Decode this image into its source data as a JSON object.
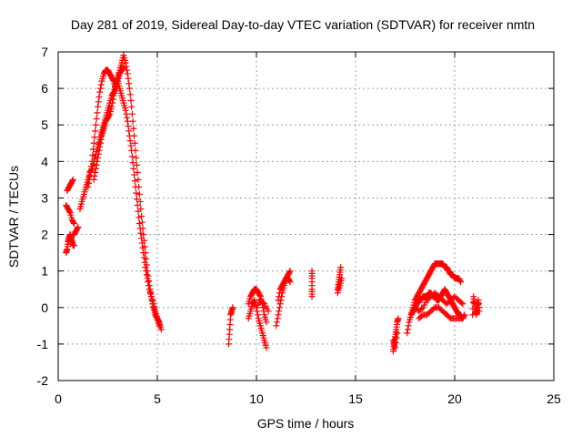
{
  "chart_data": {
    "type": "scatter",
    "title": "Day 281 of 2019, Sidereal Day-to-day VTEC variation (SDTVAR) for receiver nmtn",
    "xlabel": "GPS time / hours",
    "ylabel": "SDTVAR / TECUs",
    "xlim": [
      0,
      25
    ],
    "ylim": [
      -2,
      7
    ],
    "xticks": [
      0,
      5,
      10,
      15,
      20,
      25
    ],
    "yticks": [
      -2,
      -1,
      0,
      1,
      2,
      3,
      4,
      5,
      6,
      7
    ],
    "grid": true,
    "marker": "plus",
    "series": [
      {
        "name": "SDTVAR",
        "color": "#ff0000",
        "segments": [
          {
            "x": [
              0.4,
              0.45,
              0.5,
              0.55,
              0.6,
              0.65,
              0.7,
              0.75,
              0.8
            ],
            "y": [
              1.5,
              1.6,
              1.8,
              1.9,
              2.0,
              1.9,
              1.8,
              1.7,
              1.7
            ]
          },
          {
            "x": [
              0.4,
              0.5,
              0.6,
              0.7,
              0.8
            ],
            "y": [
              2.8,
              2.7,
              2.6,
              2.4,
              2.3
            ]
          },
          {
            "x": [
              0.45,
              0.55,
              0.65,
              0.75
            ],
            "y": [
              3.2,
              3.3,
              3.4,
              3.5
            ]
          },
          {
            "x": [
              0.8,
              0.9,
              1.0
            ],
            "y": [
              2.0,
              2.1,
              2.2
            ]
          },
          {
            "x": [
              1.1,
              1.2,
              1.3,
              1.4,
              1.5,
              1.6,
              1.7,
              1.8,
              1.9,
              2.0,
              2.1,
              2.2,
              2.3,
              2.4,
              2.5,
              2.6,
              2.7,
              2.8,
              2.9,
              3.0,
              3.1,
              3.2,
              3.3
            ],
            "y": [
              2.7,
              2.9,
              3.1,
              3.3,
              3.5,
              3.7,
              3.8,
              4.0,
              4.2,
              4.4,
              4.6,
              4.8,
              5.0,
              5.2,
              5.4,
              5.6,
              5.8,
              5.9,
              6.1,
              6.3,
              6.5,
              6.7,
              6.9
            ]
          },
          {
            "x": [
              1.5,
              1.6,
              1.7,
              1.8,
              1.9,
              2.0,
              2.1,
              2.2,
              2.3,
              2.4,
              2.5,
              2.6,
              2.7,
              2.8,
              2.9,
              3.0
            ],
            "y": [
              3.3,
              3.6,
              4.0,
              4.5,
              5.0,
              5.5,
              5.9,
              6.2,
              6.4,
              6.5,
              6.5,
              6.4,
              6.3,
              6.2,
              6.0,
              6.3
            ]
          },
          {
            "x": [
              1.8,
              1.9,
              2.0,
              2.1,
              2.2,
              2.3,
              2.4,
              2.5,
              2.6,
              2.7,
              2.8,
              2.9,
              3.0,
              3.1,
              3.2,
              3.3
            ],
            "y": [
              3.5,
              3.8,
              4.1,
              4.4,
              4.7,
              4.9,
              5.1,
              5.2,
              5.3,
              5.5,
              5.8,
              6.0,
              6.2,
              6.4,
              6.5,
              6.6
            ]
          },
          {
            "x": [
              3.3,
              3.4,
              3.5,
              3.6,
              3.7,
              3.8,
              3.9,
              4.0,
              4.1,
              4.2,
              4.3,
              4.4,
              4.5,
              4.6,
              4.7,
              4.8,
              4.9,
              5.0,
              5.1,
              5.2
            ],
            "y": [
              6.9,
              6.7,
              6.4,
              6.0,
              5.5,
              4.9,
              4.3,
              3.7,
              3.1,
              2.5,
              2.0,
              1.5,
              1.0,
              0.6,
              0.3,
              0.0,
              -0.2,
              -0.3,
              -0.4,
              -0.6
            ]
          },
          {
            "x": [
              3.0,
              3.1,
              3.2,
              3.3,
              3.4,
              3.5,
              3.6,
              3.7,
              3.8,
              3.9,
              4.0,
              4.1,
              4.2,
              4.3,
              4.4,
              4.5,
              4.6,
              4.7,
              4.8,
              4.9,
              5.0,
              5.1
            ],
            "y": [
              6.2,
              6.0,
              5.8,
              5.6,
              5.4,
              5.1,
              4.7,
              4.3,
              3.8,
              3.3,
              2.8,
              2.3,
              1.9,
              1.5,
              1.1,
              0.8,
              0.5,
              0.3,
              0.1,
              -0.1,
              -0.3,
              -0.5
            ]
          },
          {
            "x": [
              8.6,
              8.65,
              8.7,
              8.75,
              8.8
            ],
            "y": [
              -1.0,
              -0.6,
              -0.2,
              -0.1,
              0.0
            ]
          },
          {
            "x": [
              9.6,
              9.7,
              9.8,
              9.9,
              10.0,
              10.1,
              10.2,
              10.3,
              10.4,
              10.5
            ],
            "y": [
              -0.3,
              -0.1,
              0.1,
              0.2,
              0.0,
              -0.3,
              -0.5,
              -0.7,
              -0.9,
              -1.1
            ]
          },
          {
            "x": [
              9.6,
              9.7,
              9.8,
              9.9,
              10.0,
              10.1,
              10.2,
              10.3,
              10.4,
              10.5
            ],
            "y": [
              0.1,
              0.3,
              0.4,
              0.5,
              0.5,
              0.4,
              0.3,
              0.1,
              -0.2,
              -0.4
            ]
          },
          {
            "x": [
              10.0,
              10.2,
              10.4,
              10.6
            ],
            "y": [
              0.0,
              0.2,
              0.1,
              -0.1
            ]
          },
          {
            "x": [
              11.0,
              11.1,
              11.2,
              11.3,
              11.4,
              11.5,
              11.6,
              11.7
            ],
            "y": [
              -0.5,
              -0.2,
              0.1,
              0.4,
              0.6,
              0.8,
              0.9,
              1.0
            ]
          },
          {
            "x": [
              11.1,
              11.2,
              11.3,
              11.4,
              11.5,
              11.6,
              11.7
            ],
            "y": [
              0.2,
              0.5,
              0.6,
              0.7,
              0.8,
              0.8,
              0.7
            ]
          },
          {
            "x": [
              12.8,
              12.8,
              12.8,
              12.8
            ],
            "y": [
              0.3,
              0.5,
              0.8,
              1.0
            ]
          },
          {
            "x": [
              14.1,
              14.15,
              14.2,
              14.25
            ],
            "y": [
              0.5,
              0.7,
              0.9,
              1.1
            ]
          },
          {
            "x": [
              14.1,
              14.2,
              14.3
            ],
            "y": [
              0.4,
              0.6,
              0.8
            ]
          },
          {
            "x": [
              16.9,
              16.95,
              17.0,
              17.05,
              17.1,
              17.15
            ],
            "y": [
              -1.2,
              -1.0,
              -0.8,
              -0.6,
              -0.4,
              -0.3
            ]
          },
          {
            "x": [
              16.9,
              17.0,
              17.1
            ],
            "y": [
              -0.9,
              -1.1,
              -0.7
            ]
          },
          {
            "x": [
              17.6,
              17.7,
              17.8,
              17.9,
              18.0,
              18.1,
              18.2,
              18.3,
              18.4,
              18.5,
              18.6,
              18.7,
              18.8,
              18.9,
              19.0,
              19.1,
              19.2,
              19.3,
              19.4,
              19.5,
              19.6,
              19.7,
              19.8,
              19.9,
              20.0,
              20.1,
              20.2,
              20.3
            ],
            "y": [
              -0.7,
              -0.4,
              -0.2,
              0.0,
              0.2,
              0.3,
              0.4,
              0.5,
              0.6,
              0.7,
              0.8,
              0.9,
              1.0,
              1.1,
              1.2,
              1.2,
              1.2,
              1.2,
              1.2,
              1.1,
              1.1,
              1.0,
              0.9,
              0.9,
              0.8,
              0.8,
              0.8,
              0.7
            ]
          },
          {
            "x": [
              17.8,
              17.9,
              18.0,
              18.1,
              18.2,
              18.3,
              18.4,
              18.5,
              18.6,
              18.7,
              18.8,
              18.9,
              19.0,
              19.1,
              19.2,
              19.3,
              19.4,
              19.5,
              19.6,
              19.7,
              19.8,
              19.9,
              20.0,
              20.1,
              20.2,
              20.3,
              20.4,
              20.5
            ],
            "y": [
              -0.2,
              -0.1,
              0.0,
              0.1,
              0.2,
              0.2,
              0.3,
              0.3,
              0.3,
              0.4,
              0.4,
              0.3,
              0.3,
              0.2,
              0.2,
              0.3,
              0.4,
              0.5,
              0.4,
              0.3,
              0.2,
              0.1,
              0.0,
              -0.1,
              -0.2,
              -0.2,
              -0.3,
              -0.2
            ]
          },
          {
            "x": [
              18.0,
              18.2,
              18.4,
              18.6,
              18.8,
              19.0,
              19.2,
              19.4,
              19.6,
              19.8,
              20.0,
              20.2,
              20.4
            ],
            "y": [
              0.0,
              -0.1,
              0.0,
              0.2,
              0.3,
              0.4,
              0.3,
              0.2,
              0.1,
              0.2,
              0.3,
              0.2,
              0.1
            ]
          },
          {
            "x": [
              18.2,
              18.4,
              18.6,
              18.8,
              19.0,
              19.2,
              19.4,
              19.6,
              19.8,
              20.0,
              20.2,
              20.4
            ],
            "y": [
              -0.3,
              -0.2,
              -0.2,
              -0.1,
              0.0,
              0.0,
              -0.1,
              -0.2,
              -0.3,
              -0.3,
              -0.3,
              -0.3
            ]
          },
          {
            "x": [
              20.9,
              20.95,
              21.0,
              21.05,
              21.1,
              21.15,
              21.2,
              21.25
            ],
            "y": [
              -0.2,
              0.3,
              0.1,
              -0.1,
              -0.2,
              0.0,
              0.2,
              -0.1
            ]
          }
        ]
      }
    ]
  }
}
